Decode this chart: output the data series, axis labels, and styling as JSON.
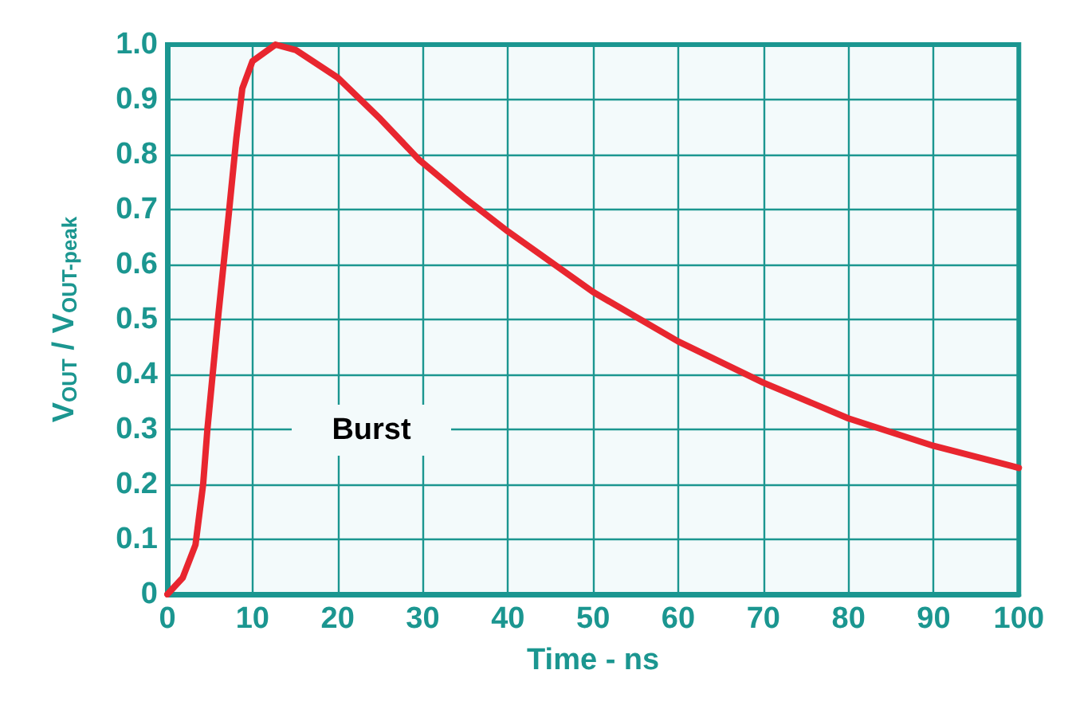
{
  "chart_data": {
    "type": "line",
    "xlabel": "Time - ns",
    "ylabel": "V$_{OUT}$ / V$_{OUT-peak}$",
    "x": [
      0,
      1.8,
      3.3,
      4.2,
      4.7,
      6.0,
      7.2,
      8.1,
      8.8,
      10,
      12.7,
      15.1,
      20,
      25,
      29.6,
      35,
      40,
      45,
      50,
      60,
      70,
      80,
      90,
      100
    ],
    "series": [
      {
        "color": "#e8262f",
        "values": [
          0,
          0.03,
          0.09,
          0.2,
          0.3,
          0.51,
          0.69,
          0.83,
          0.92,
          0.97,
          1.0,
          0.99,
          0.94,
          0.865,
          0.79,
          0.72,
          0.66,
          0.605,
          0.55,
          0.46,
          0.385,
          0.32,
          0.27,
          0.23
        ]
      }
    ],
    "xlim": [
      0,
      100
    ],
    "xticks": [
      0,
      10,
      20,
      30,
      40,
      50,
      60,
      70,
      80,
      90,
      100
    ],
    "ylim": [
      0,
      1.0
    ],
    "yticks": [
      0,
      {
        "value": 0.1,
        "label": "0.1"
      },
      {
        "value": 0.2,
        "label": "0.2"
      },
      {
        "value": 0.3,
        "label": "0.3"
      },
      {
        "value": 0.4,
        "label": "0.4"
      },
      {
        "value": 0.5,
        "label": "0.5"
      },
      {
        "value": 0.6,
        "label": "0.6"
      },
      {
        "value": 0.7,
        "label": "0.7"
      },
      {
        "value": 0.8,
        "label": "0.8"
      },
      {
        "value": 0.9,
        "label": "0.9"
      },
      {
        "value": 1,
        "label": "1.0"
      }
    ],
    "annotations": [
      "Burst"
    ],
    "grid": true,
    "marker": "none",
    "line_style": "solid"
  }
}
